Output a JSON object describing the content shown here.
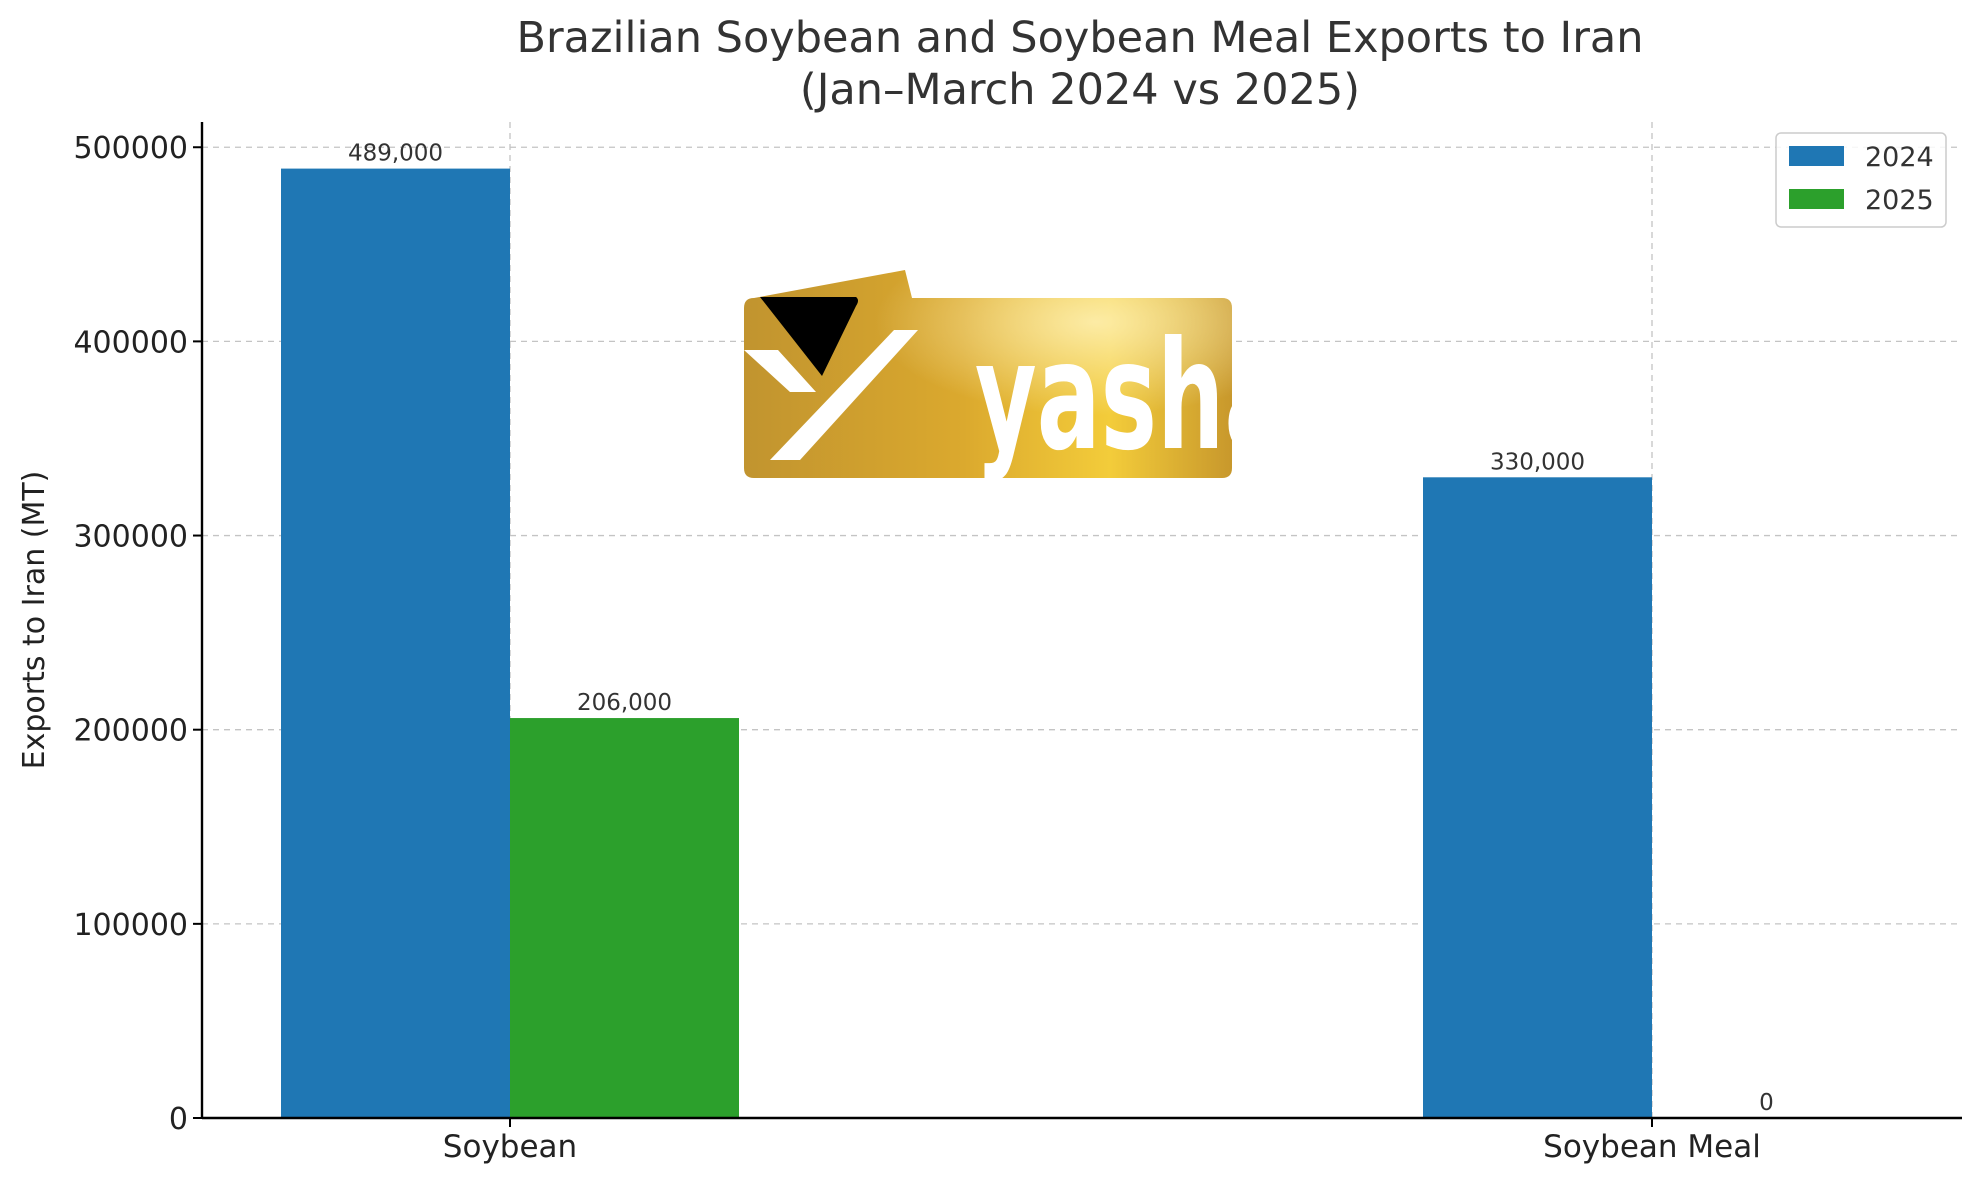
{
  "chart_data": {
    "type": "bar",
    "title_lines": [
      "Brazilian Soybean and Soybean Meal Exports to Iran",
      "(Jan–March 2024 vs 2025)"
    ],
    "xlabel": "",
    "ylabel": "Exports to Iran (MT)",
    "categories": [
      "Soybean",
      "Soybean Meal"
    ],
    "series": [
      {
        "name": "2024",
        "color": "#1f77b4",
        "values": [
          489000,
          330000
        ],
        "value_labels": [
          "489,000",
          "330,000"
        ]
      },
      {
        "name": "2025",
        "color": "#2ca02c",
        "values": [
          206000,
          0
        ],
        "value_labels": [
          "206,000",
          "0"
        ]
      }
    ],
    "ylim": [
      0,
      513000
    ],
    "yticks": [
      0,
      100000,
      200000,
      300000,
      400000,
      500000
    ],
    "ytick_labels": [
      "0",
      "100000",
      "200000",
      "300000",
      "400000",
      "500000"
    ],
    "grid": true,
    "legend_position": "top-right"
  },
  "watermark": {
    "logo_text": "yashar",
    "icon": "yashar-logo",
    "colors": {
      "gold_dark": "#c1942f",
      "gold_light": "#f3cc3a",
      "black": "#000000"
    }
  }
}
